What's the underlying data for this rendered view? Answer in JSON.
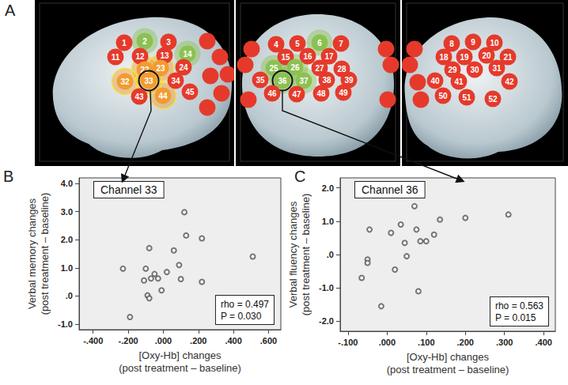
{
  "panel_labels": [
    "A",
    "B",
    "C"
  ],
  "panel_a": {
    "views": [
      {
        "channels": [
          {
            "label": "1",
            "color": "#e53a2b"
          },
          {
            "label": "2",
            "color": "#8cc152"
          },
          {
            "label": "3",
            "color": "#e53a2b"
          },
          {
            "label": "11",
            "color": "#e53a2b"
          },
          {
            "label": "12",
            "color": "#e53a2b"
          },
          {
            "label": "13",
            "color": "#e53a2b"
          },
          {
            "label": "14",
            "color": "#8cc152"
          },
          {
            "label": "22",
            "color": "#f29b30"
          },
          {
            "label": "23",
            "color": "#f29b30"
          },
          {
            "label": "24",
            "color": "#e53a2b"
          },
          {
            "label": "32",
            "color": "#f29b30"
          },
          {
            "label": "33",
            "color": "#f29b30",
            "circled": true
          },
          {
            "label": "34",
            "color": "#e53a2b"
          },
          {
            "label": "43",
            "color": "#e53a2b"
          },
          {
            "label": "44",
            "color": "#f29b30"
          },
          {
            "label": "45",
            "color": "#e53a2b"
          }
        ]
      },
      {
        "channels": [
          {
            "label": "4",
            "color": "#e53a2b"
          },
          {
            "label": "5",
            "color": "#e53a2b"
          },
          {
            "label": "6",
            "color": "#8cc152"
          },
          {
            "label": "7",
            "color": "#e53a2b"
          },
          {
            "label": "15",
            "color": "#e53a2b"
          },
          {
            "label": "16",
            "color": "#e53a2b"
          },
          {
            "label": "17",
            "color": "#e53a2b"
          },
          {
            "label": "25",
            "color": "#8cc152"
          },
          {
            "label": "26",
            "color": "#8cc152"
          },
          {
            "label": "27",
            "color": "#e53a2b"
          },
          {
            "label": "28",
            "color": "#e53a2b"
          },
          {
            "label": "35",
            "color": "#e53a2b"
          },
          {
            "label": "36",
            "color": "#8cc152",
            "circled": true
          },
          {
            "label": "37",
            "color": "#8cc152"
          },
          {
            "label": "38",
            "color": "#e53a2b"
          },
          {
            "label": "39",
            "color": "#e53a2b"
          },
          {
            "label": "46",
            "color": "#e53a2b"
          },
          {
            "label": "47",
            "color": "#e53a2b"
          },
          {
            "label": "48",
            "color": "#e53a2b"
          },
          {
            "label": "49",
            "color": "#e53a2b"
          }
        ]
      },
      {
        "channels": [
          {
            "label": "8",
            "color": "#e53a2b"
          },
          {
            "label": "9",
            "color": "#e53a2b"
          },
          {
            "label": "10",
            "color": "#e53a2b"
          },
          {
            "label": "18",
            "color": "#e53a2b"
          },
          {
            "label": "19",
            "color": "#e53a2b"
          },
          {
            "label": "20",
            "color": "#e53a2b"
          },
          {
            "label": "21",
            "color": "#e53a2b"
          },
          {
            "label": "29",
            "color": "#e53a2b"
          },
          {
            "label": "30",
            "color": "#e53a2b"
          },
          {
            "label": "31",
            "color": "#e53a2b"
          },
          {
            "label": "40",
            "color": "#e53a2b"
          },
          {
            "label": "41",
            "color": "#e53a2b"
          },
          {
            "label": "42",
            "color": "#e53a2b"
          },
          {
            "label": "50",
            "color": "#e53a2b"
          },
          {
            "label": "51",
            "color": "#e53a2b"
          },
          {
            "label": "52",
            "color": "#e53a2b"
          }
        ]
      }
    ]
  },
  "chart_data": [
    {
      "type": "scatter",
      "x_label": "[Oxy-Hb] changes\n(post treatment – baseline)",
      "y_label": "Verbal memory changes\n(post treatment – baseline)",
      "annotations": [
        "Channel 33",
        "rho = 0.497",
        "P = 0.030"
      ],
      "x": [
        -0.23,
        -0.19,
        -0.11,
        -0.1,
        -0.09,
        -0.08,
        -0.08,
        -0.07,
        -0.05,
        -0.03,
        -0.01,
        0.02,
        0.06,
        0.09,
        0.1,
        0.12,
        0.13,
        0.22,
        0.22,
        0.51
      ],
      "values": [
        0.97,
        -0.75,
        0.55,
        0.97,
        0.02,
        -0.08,
        1.7,
        0.62,
        0.78,
        0.62,
        0.2,
        0.85,
        1.62,
        1.1,
        0.6,
        2.98,
        2.15,
        2.05,
        0.5,
        1.4
      ],
      "color": "#555555",
      "marker": "open_circle",
      "grid": false,
      "xlim": [
        -0.48,
        0.67
      ],
      "xticks": [
        {
          "value": -0.4,
          "label": "-.400"
        },
        {
          "value": -0.2,
          "label": "-.200"
        },
        {
          "value": 0,
          "label": ".000"
        },
        {
          "value": 0.2,
          "label": ".200"
        },
        {
          "value": 0.4,
          "label": ".400"
        },
        {
          "value": 0.6,
          "label": ".600"
        }
      ],
      "ylim": [
        -1.2,
        4.2
      ],
      "yticks": [
        {
          "value": -1,
          "label": "-1.0"
        },
        {
          "value": 0,
          "label": ".0"
        },
        {
          "value": 1,
          "label": "1.0"
        },
        {
          "value": 2,
          "label": "2.0"
        },
        {
          "value": 3,
          "label": "3.0"
        },
        {
          "value": 4,
          "label": "4.0"
        }
      ]
    },
    {
      "type": "scatter",
      "x_label": "[Oxy-Hb] changes\n(post treatment – baseline)",
      "y_label": "Verbal fluency changes\n(post treatment – baseline)",
      "annotations": [
        "Channel 36",
        "rho = 0.563",
        "P = 0.015"
      ],
      "x": [
        -0.065,
        -0.05,
        -0.05,
        -0.045,
        -0.015,
        0.01,
        0.02,
        0.035,
        0.045,
        0.05,
        0.07,
        0.075,
        0.08,
        0.085,
        0.1,
        0.12,
        0.135,
        0.2,
        0.31
      ],
      "values": [
        -0.7,
        -0.15,
        -0.25,
        0.75,
        -1.55,
        0.65,
        -0.45,
        0.9,
        0.35,
        -0.05,
        1.45,
        0.75,
        -1.1,
        0.4,
        0.4,
        0.6,
        1.05,
        1.1,
        1.2
      ],
      "color": "#555555",
      "marker": "open_circle",
      "grid": false,
      "xlim": [
        -0.12,
        0.43
      ],
      "xticks": [
        {
          "value": -0.1,
          "label": "-.100"
        },
        {
          "value": 0,
          "label": ".000"
        },
        {
          "value": 0.1,
          "label": ".100"
        },
        {
          "value": 0.2,
          "label": ".200"
        },
        {
          "value": 0.3,
          "label": ".300"
        },
        {
          "value": 0.4,
          "label": ".400"
        }
      ],
      "ylim": [
        -2.3,
        2.3
      ],
      "yticks": [
        {
          "value": -2,
          "label": "-2.0"
        },
        {
          "value": -1,
          "label": "-1.0"
        },
        {
          "value": 0,
          "label": ".0"
        },
        {
          "value": 1,
          "label": "1.0"
        },
        {
          "value": 2,
          "label": "2.0"
        }
      ]
    }
  ]
}
